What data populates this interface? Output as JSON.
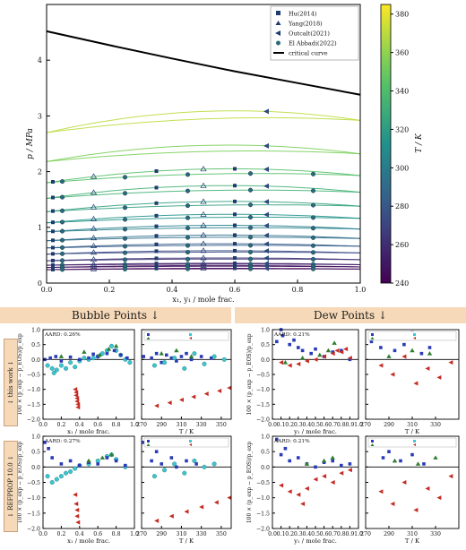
{
  "bands": {
    "bubble": "Bubble Points ↓",
    "dew": "Dew Points ↓"
  },
  "rows": [
    {
      "label": "↓ this work ↓"
    },
    {
      "label": "↓ REFPROP 10.0 ↓"
    }
  ],
  "chart_data": [
    {
      "type": "scatter",
      "xlabel": "x₁, y₁ / mole frac.",
      "ylabel": "p / MPa",
      "xlim": [
        0,
        1
      ],
      "ylim": [
        0,
        5
      ],
      "xticks": [
        0.0,
        0.2,
        0.4,
        0.6,
        0.8,
        1.0
      ],
      "yticks": [
        0,
        1,
        2,
        3,
        4
      ],
      "legend": [
        "Hu(2014)",
        "Yang(2018)",
        "Outcalt(2021)",
        "El Abbadi(2022)",
        "critical curve"
      ],
      "critical_curve": {
        "x": [
          0,
          0.2,
          0.4,
          0.6,
          0.8,
          1.0
        ],
        "y": [
          4.52,
          4.27,
          4.03,
          3.8,
          3.59,
          3.38
        ]
      },
      "isotherms": [
        {
          "T": 370,
          "p0": 2.7,
          "p1": 2.92,
          "bulge": 0.27
        },
        {
          "T": 355,
          "p0": 2.18,
          "p1": 2.32,
          "bulge": 0.22
        },
        {
          "T": 343,
          "p0": 1.8,
          "p1": 1.93,
          "bulge": 0.18
        },
        {
          "T": 333,
          "p0": 1.52,
          "p1": 1.63,
          "bulge": 0.17
        },
        {
          "T": 323,
          "p0": 1.28,
          "p1": 1.38,
          "bulge": 0.13
        },
        {
          "T": 313,
          "p0": 1.08,
          "p1": 1.16,
          "bulge": 0.11
        },
        {
          "T": 303,
          "p0": 0.92,
          "p1": 0.97,
          "bulge": 0.09
        },
        {
          "T": 293,
          "p0": 0.76,
          "p1": 0.8,
          "bulge": 0.08
        },
        {
          "T": 283,
          "p0": 0.63,
          "p1": 0.66,
          "bulge": 0.06
        },
        {
          "T": 273,
          "p0": 0.52,
          "p1": 0.54,
          "bulge": 0.05
        },
        {
          "T": 263,
          "p0": 0.4,
          "p1": 0.42,
          "bulge": 0.04
        },
        {
          "T": 253,
          "p0": 0.32,
          "p1": 0.33,
          "bulge": 0.03
        },
        {
          "T": 248,
          "p0": 0.28,
          "p1": 0.29,
          "bulge": 0.03
        },
        {
          "T": 243,
          "p0": 0.24,
          "p1": 0.25,
          "bulge": 0.02
        }
      ],
      "colorbar": {
        "label": "T / K",
        "range": [
          240,
          385
        ],
        "ticks": [
          240,
          260,
          280,
          300,
          320,
          340,
          360,
          380
        ]
      }
    },
    {
      "type": "scatter",
      "panel": "bubble_x_thiswork",
      "aard": "AARD: 0.26%",
      "xlabel": "x₁ / mole frac.",
      "ylabel": "100 × (p_exp − p_EOS)/p_exp",
      "xlim": [
        0,
        1
      ],
      "ylim": [
        -2,
        1
      ],
      "xticks": [
        0.0,
        0.2,
        0.4,
        0.6,
        0.8,
        1.0
      ],
      "yticks": [
        -2.0,
        -1.5,
        -1.0,
        -0.5,
        0.0,
        0.5,
        1.0
      ],
      "series": [
        {
          "name": "cyan",
          "x": [
            0.05,
            0.1,
            0.12,
            0.15,
            0.2,
            0.25,
            0.3,
            0.35,
            0.4,
            0.45,
            0.5,
            0.55,
            0.6,
            0.65,
            0.7,
            0.75,
            0.8,
            0.85,
            0.9,
            0.95
          ],
          "y": [
            -0.2,
            -0.3,
            -0.45,
            -0.35,
            -0.2,
            -0.3,
            -0.1,
            -0.25,
            -0.05,
            0.05,
            0.0,
            0.05,
            0.1,
            0.2,
            0.3,
            0.45,
            0.3,
            0.15,
            0.0,
            -0.1
          ]
        },
        {
          "name": "blue",
          "x": [
            0.02,
            0.08,
            0.14,
            0.2,
            0.3,
            0.4,
            0.5,
            0.55,
            0.6,
            0.7,
            0.78,
            0.85,
            0.92
          ],
          "y": [
            0.0,
            0.05,
            0.1,
            -0.05,
            0.08,
            0.0,
            0.05,
            0.18,
            0.1,
            0.2,
            0.3,
            0.15,
            0.05
          ]
        },
        {
          "name": "red",
          "x": [
            0.35,
            0.36,
            0.36,
            0.37,
            0.37,
            0.38,
            0.38
          ],
          "y": [
            -1.0,
            -1.1,
            -1.2,
            -1.3,
            -1.4,
            -1.5,
            -1.6
          ]
        },
        {
          "name": "green",
          "x": [
            0.2,
            0.45,
            0.62,
            0.72,
            0.8
          ],
          "y": [
            0.1,
            0.25,
            0.15,
            0.35,
            0.45
          ]
        }
      ]
    },
    {
      "type": "scatter",
      "panel": "bubble_T_thiswork",
      "xlabel": "T / K",
      "xlim": [
        270,
        360
      ],
      "ylim": [
        -2,
        1
      ],
      "xticks": [
        270,
        290,
        310,
        330,
        350
      ],
      "series": [
        {
          "name": "blue",
          "x": [
            272,
            280,
            285,
            290,
            295,
            300,
            305,
            310,
            315,
            320,
            330,
            340
          ],
          "y": [
            0.1,
            0.05,
            0.2,
            -0.1,
            0.15,
            0.05,
            -0.05,
            0.1,
            0.2,
            0.0,
            0.1,
            0.05
          ]
        },
        {
          "name": "cyan",
          "x": [
            283,
            293,
            303,
            313,
            323,
            333,
            343,
            353
          ],
          "y": [
            -0.2,
            -0.1,
            0.05,
            -0.3,
            0.2,
            -0.15,
            0.1,
            0.0
          ]
        },
        {
          "name": "red",
          "x": [
            285,
            298,
            310,
            322,
            335,
            348,
            358
          ],
          "y": [
            -1.55,
            -1.45,
            -1.35,
            -1.25,
            -1.15,
            -1.05,
            -0.95
          ]
        },
        {
          "name": "green",
          "x": [
            290,
            305,
            320
          ],
          "y": [
            0.2,
            0.3,
            0.1
          ]
        }
      ]
    },
    {
      "type": "scatter",
      "panel": "dew_y_thiswork",
      "aard": "AARD: 0.21%",
      "xlabel": "y₁ / mole frac.",
      "ylabel": "100 × (p_exp − p_EOS)/p_exp",
      "xlim": [
        0,
        1
      ],
      "ylim": [
        -2,
        1
      ],
      "xticks": [
        0.0,
        0.1,
        0.2,
        0.3,
        0.4,
        0.5,
        0.6,
        0.7,
        0.8,
        0.9,
        1.0
      ],
      "yticks": [
        -2.0,
        -1.5,
        -1.0,
        -0.5,
        0.0,
        0.5,
        1.0
      ],
      "series": [
        {
          "name": "blue",
          "x": [
            0.05,
            0.1,
            0.12,
            0.2,
            0.25,
            0.3,
            0.35,
            0.45,
            0.5,
            0.6,
            0.7,
            0.8,
            0.9
          ],
          "y": [
            0.6,
            1.0,
            0.8,
            0.5,
            0.65,
            0.4,
            0.3,
            0.2,
            0.35,
            0.1,
            0.25,
            0.3,
            0.0
          ]
        },
        {
          "name": "red",
          "x": [
            0.1,
            0.2,
            0.3,
            0.4,
            0.5,
            0.6,
            0.7,
            0.75,
            0.8,
            0.85,
            0.9
          ],
          "y": [
            -0.1,
            -0.2,
            -0.15,
            -0.05,
            0.0,
            0.1,
            0.2,
            0.3,
            0.25,
            0.35,
            0.05
          ]
        },
        {
          "name": "green",
          "x": [
            0.15,
            0.35,
            0.55,
            0.65,
            0.72
          ],
          "y": [
            -0.1,
            0.05,
            0.15,
            0.3,
            0.55
          ]
        }
      ]
    },
    {
      "type": "scatter",
      "panel": "dew_T_thiswork",
      "xlabel": "T / K",
      "xlim": [
        270,
        350
      ],
      "ylim": [
        -2,
        1
      ],
      "xticks": [
        270,
        290,
        310,
        330
      ],
      "series": [
        {
          "name": "blue",
          "x": [
            275,
            283,
            290,
            295,
            303,
            310,
            318,
            325
          ],
          "y": [
            0.6,
            0.4,
            0.8,
            0.3,
            0.5,
            0.9,
            0.2,
            0.4
          ]
        },
        {
          "name": "red",
          "x": [
            283,
            293,
            303,
            313,
            323,
            333,
            343
          ],
          "y": [
            -0.2,
            -0.5,
            0.1,
            -0.8,
            -0.3,
            -0.6,
            -0.1
          ]
        },
        {
          "name": "green",
          "x": [
            290,
            310,
            325
          ],
          "y": [
            0.1,
            0.3,
            0.2
          ]
        }
      ]
    },
    {
      "type": "scatter",
      "panel": "bubble_x_refprop",
      "aard": "AARD: 0.27%",
      "xlabel": "x₁ / mole frac.",
      "ylabel": "100 × (p_exp − p_EOS)/p_exp",
      "xlim": [
        0,
        1
      ],
      "ylim": [
        -2,
        1
      ],
      "xticks": [
        0.0,
        0.2,
        0.4,
        0.6,
        0.8,
        1.0
      ],
      "yticks": [
        -2.0,
        -1.5,
        -1.0,
        -0.5,
        0.0,
        0.5,
        1.0
      ],
      "series": [
        {
          "name": "cyan",
          "x": [
            0.05,
            0.1,
            0.15,
            0.2,
            0.25,
            0.3,
            0.35,
            0.4,
            0.5,
            0.6,
            0.7,
            0.75,
            0.8,
            0.9
          ],
          "y": [
            -0.3,
            -0.5,
            -0.4,
            -0.3,
            -0.2,
            -0.15,
            -0.05,
            0.05,
            0.1,
            0.2,
            0.35,
            0.4,
            0.25,
            0.0
          ]
        },
        {
          "name": "blue",
          "x": [
            0.02,
            0.06,
            0.1,
            0.2,
            0.3,
            0.4,
            0.5,
            0.6,
            0.7,
            0.8,
            0.9
          ],
          "y": [
            0.8,
            0.6,
            0.3,
            0.1,
            0.2,
            0.05,
            0.15,
            0.1,
            0.3,
            0.2,
            0.05
          ]
        },
        {
          "name": "red",
          "x": [
            0.35,
            0.36,
            0.37,
            0.37,
            0.38
          ],
          "y": [
            -0.9,
            -1.2,
            -1.4,
            -1.6,
            -1.8
          ]
        },
        {
          "name": "green",
          "x": [
            0.5,
            0.65,
            0.75
          ],
          "y": [
            0.2,
            0.3,
            0.4
          ]
        }
      ]
    },
    {
      "type": "scatter",
      "panel": "bubble_T_refprop",
      "xlabel": "T / K",
      "xlim": [
        270,
        360
      ],
      "ylim": [
        -2,
        1
      ],
      "xticks": [
        270,
        290,
        310,
        330,
        350
      ],
      "series": [
        {
          "name": "blue",
          "x": [
            272,
            280,
            285,
            290,
            300,
            305,
            315,
            325
          ],
          "y": [
            0.8,
            0.2,
            0.5,
            0.1,
            0.3,
            0.0,
            0.2,
            0.1
          ]
        },
        {
          "name": "cyan",
          "x": [
            283,
            293,
            303,
            313,
            323,
            333,
            343
          ],
          "y": [
            -0.3,
            -0.1,
            0.1,
            -0.2,
            0.2,
            0.0,
            0.1
          ]
        },
        {
          "name": "red",
          "x": [
            285,
            300,
            315,
            330,
            345,
            358
          ],
          "y": [
            -1.75,
            -1.6,
            -1.45,
            -1.3,
            -1.15,
            -1.0
          ]
        }
      ]
    },
    {
      "type": "scatter",
      "panel": "dew_y_refprop",
      "aard": "AARD: 0.21%",
      "xlabel": "y₁ / mole frac.",
      "ylabel": "100 × (p_exp − p_EOS)/p_exp",
      "xlim": [
        0,
        1
      ],
      "ylim": [
        -2,
        1
      ],
      "xticks": [
        0.0,
        0.1,
        0.2,
        0.3,
        0.4,
        0.5,
        0.6,
        0.7,
        0.8,
        0.9,
        1.0
      ],
      "yticks": [
        -2.0,
        -1.5,
        -1.0,
        -0.5,
        0.0,
        0.5,
        1.0
      ],
      "series": [
        {
          "name": "blue",
          "x": [
            0.05,
            0.1,
            0.15,
            0.2,
            0.3,
            0.4,
            0.5,
            0.6,
            0.7,
            0.8,
            0.9
          ],
          "y": [
            0.9,
            0.4,
            0.6,
            0.2,
            0.3,
            0.1,
            0.0,
            0.15,
            0.2,
            0.05,
            0.1
          ]
        },
        {
          "name": "red",
          "x": [
            0.1,
            0.2,
            0.3,
            0.35,
            0.4,
            0.5,
            0.6,
            0.7,
            0.8,
            0.9
          ],
          "y": [
            -0.6,
            -0.8,
            -0.9,
            -1.2,
            -0.7,
            -0.4,
            -0.3,
            -0.5,
            -0.2,
            -0.1
          ]
        },
        {
          "name": "green",
          "x": [
            0.4,
            0.6,
            0.7
          ],
          "y": [
            0.1,
            0.2,
            0.3
          ]
        }
      ]
    },
    {
      "type": "scatter",
      "panel": "dew_T_refprop",
      "xlabel": "T / K",
      "xlim": [
        270,
        350
      ],
      "ylim": [
        -2,
        1
      ],
      "xticks": [
        270,
        290,
        310,
        330
      ],
      "series": [
        {
          "name": "blue",
          "x": [
            275,
            285,
            290,
            300,
            310,
            320
          ],
          "y": [
            0.8,
            0.3,
            0.5,
            0.2,
            0.4,
            0.1
          ]
        },
        {
          "name": "red",
          "x": [
            283,
            293,
            303,
            313,
            323,
            333,
            343
          ],
          "y": [
            -0.8,
            -1.2,
            -0.5,
            -1.4,
            -0.7,
            -1.0,
            -0.3
          ]
        },
        {
          "name": "green",
          "x": [
            295,
            315,
            330
          ],
          "y": [
            0.2,
            0.1,
            0.3
          ]
        }
      ]
    }
  ]
}
